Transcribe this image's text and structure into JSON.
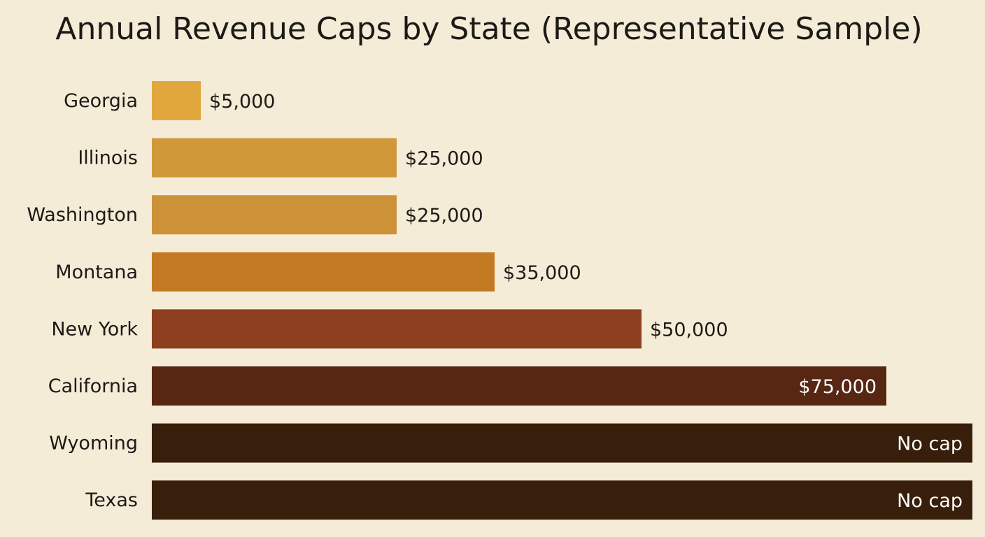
{
  "chart_data": {
    "type": "bar",
    "orientation": "horizontal",
    "title": "Annual Revenue Caps by State (Representative Sample)",
    "xlabel": "",
    "ylabel": "",
    "grid": false,
    "xlim": [
      0,
      75000
    ],
    "categories": [
      "Georgia",
      "Illinois",
      "Washington",
      "Montana",
      "New York",
      "California",
      "Wyoming",
      "Texas"
    ],
    "values": [
      5000,
      25000,
      25000,
      35000,
      50000,
      75000,
      null,
      null
    ],
    "value_labels": [
      "$5,000",
      "$25,000",
      "$25,000",
      "$35,000",
      "$50,000",
      "$75,000",
      "No cap",
      "No cap"
    ],
    "uncapped": [
      false,
      false,
      false,
      false,
      false,
      false,
      true,
      true
    ],
    "colors": [
      "#e1a63c",
      "#d1983a",
      "#cd9138",
      "#c37a22",
      "#8e3f1f",
      "#572714",
      "#381f0b",
      "#381f0b"
    ]
  }
}
